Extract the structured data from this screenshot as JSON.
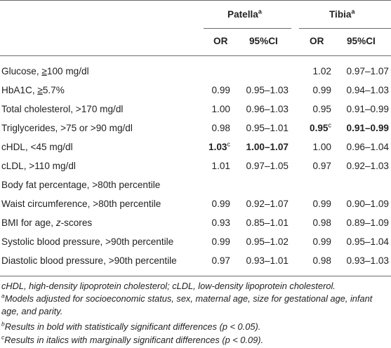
{
  "header": {
    "patella": "Patella",
    "tibia": "Tibia",
    "group_sup": "a",
    "or": "OR",
    "ci": "95%CI"
  },
  "rows": [
    {
      "label_pre": "Glucose, ",
      "sym": "≥",
      "label_post": "100 mg/dl",
      "p_or": "",
      "p_ci": "",
      "t_or": "1.02",
      "t_ci": "0.97–1.07"
    },
    {
      "label_pre": "HbA1C, ",
      "sym": "≥",
      "label_post": "5.7%",
      "p_or": "0.99",
      "p_ci": "0.95–1.03",
      "t_or": "0.99",
      "t_ci": "0.94–1.03"
    },
    {
      "label": "Total cholesterol, >170 mg/dl",
      "p_or": "1.00",
      "p_ci": "0.96–1.03",
      "t_or": "0.95",
      "t_ci": "0.91–0.99"
    },
    {
      "label": "Triglycerides, >75 or >90 mg/dl",
      "p_or": "0.98",
      "p_ci": "0.95–1.01",
      "t_or": "0.95",
      "t_or_sup": "c",
      "t_ci": "0.91–0.99"
    },
    {
      "label": "cHDL, <45 mg/dl",
      "p_or": "1.03",
      "p_or_sup": "c",
      "p_ci": "1.00–1.07",
      "t_or": "1.00",
      "t_ci": "0.96–1.04"
    },
    {
      "label": "cLDL, >110 mg/dl",
      "p_or": "1.01",
      "p_ci": "0.97–1.05",
      "t_or": "0.97",
      "t_ci": "0.92–1.03"
    },
    {
      "label": "Body fat percentage, >80th percentile",
      "p_or": "",
      "p_ci": "",
      "t_or": "",
      "t_ci": ""
    },
    {
      "label": "Waist circumference, >80th percentile",
      "p_or": "0.99",
      "p_ci": "0.92–1.07",
      "t_or": "0.99",
      "t_ci": "0.90–1.09"
    },
    {
      "label_pre": "BMI for age, ",
      "label_italic": "z",
      "label_post": "-scores",
      "p_or": "0.93",
      "p_ci": "0.85–1.01",
      "t_or": "0.98",
      "t_ci": "0.89–1.09"
    },
    {
      "label": "Systolic blood pressure, >90th percentile",
      "p_or": "0.99",
      "p_ci": "0.95–1.02",
      "t_or": "0.99",
      "t_ci": "0.95–1.04"
    },
    {
      "label": "Diastolic blood pressure, >90th percentile",
      "p_or": "0.97",
      "p_ci": "0.93–1.01",
      "t_or": "0.98",
      "t_ci": "0.93–1.03"
    }
  ],
  "footnotes": {
    "abbrev": "cHDL, high-density lipoprotein cholesterol; cLDL, low-density lipoprotein cholesterol.",
    "a_mark": "a",
    "a_text": "Models adjusted for socioeconomic status, sex, maternal age, size for gestational age, infant age, and parity.",
    "b_mark": "b",
    "b_text": "Results in bold with statistically significant differences (p < 0.05).",
    "c_mark": "c",
    "c_text": "Results in italics with marginally significant differences (p < 0.09)."
  }
}
